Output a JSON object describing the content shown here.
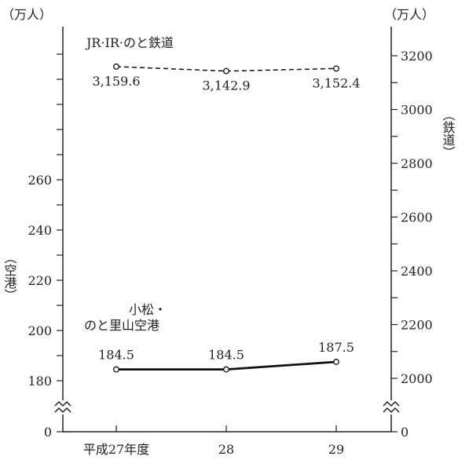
{
  "chart_data": {
    "type": "line",
    "categories": [
      "平成27年度",
      "28",
      "29"
    ],
    "left_axis": {
      "unit": "（万人）",
      "label": "（空港）",
      "ticks": [
        180,
        200,
        220,
        240,
        260
      ],
      "zero_label": "0",
      "broken": true
    },
    "right_axis": {
      "unit": "（万人）",
      "label": "（鉄道）",
      "ticks": [
        2000,
        2200,
        2400,
        2600,
        2800,
        3000,
        3200
      ],
      "zero_label": "0",
      "broken": true
    },
    "series": [
      {
        "name": "JR·IR·のと鉄道",
        "axis": "right",
        "style": "dashed",
        "values": [
          3159.6,
          3142.9,
          3152.4
        ],
        "value_labels": [
          "3,159.6",
          "3,142.9",
          "3,152.4"
        ]
      },
      {
        "name_lines": [
          "小松・",
          "のと里山空港"
        ],
        "axis": "left",
        "style": "solid",
        "values": [
          184.5,
          184.5,
          187.5
        ],
        "value_labels": [
          "184.5",
          "184.5",
          "187.5"
        ]
      }
    ]
  }
}
